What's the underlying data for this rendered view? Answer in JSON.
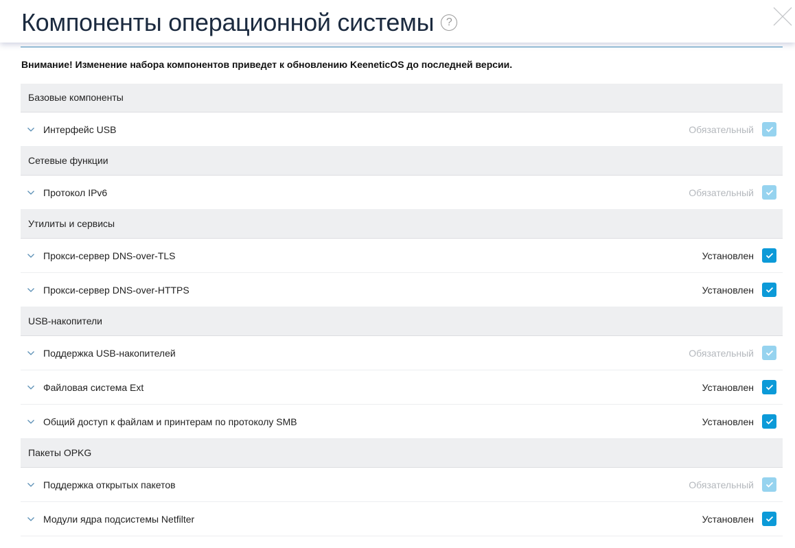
{
  "header": {
    "title": "Компоненты операционной системы",
    "help_icon": "question-circle-icon",
    "close_icon": "close-x-icon"
  },
  "warning": "Внимание! Изменение набора компонентов приведет к обновлению KeeneticOS до последней версии.",
  "colors": {
    "accent": "#0c9ad8",
    "disabled": "#96d3ef",
    "section_bg": "#eeeff1"
  },
  "sections": [
    {
      "title": "Базовые компоненты",
      "items": [
        {
          "label": "Интерфейс USB",
          "status": "Обязательный",
          "required": true,
          "checked": true
        }
      ]
    },
    {
      "title": "Сетевые функции",
      "items": [
        {
          "label": "Протокол IPv6",
          "status": "Обязательный",
          "required": true,
          "checked": true
        }
      ]
    },
    {
      "title": "Утилиты и сервисы",
      "items": [
        {
          "label": "Прокси-сервер DNS-over-TLS",
          "status": "Установлен",
          "required": false,
          "checked": true
        },
        {
          "label": "Прокси-сервер DNS-over-HTTPS",
          "status": "Установлен",
          "required": false,
          "checked": true
        }
      ]
    },
    {
      "title": "USB-накопители",
      "items": [
        {
          "label": "Поддержка USB-накопителей",
          "status": "Обязательный",
          "required": true,
          "checked": true
        },
        {
          "label": "Файловая система Ext",
          "status": "Установлен",
          "required": false,
          "checked": true
        },
        {
          "label": "Общий доступ к файлам и принтерам по протоколу SMB",
          "status": "Установлен",
          "required": false,
          "checked": true
        }
      ]
    },
    {
      "title": "Пакеты OPKG",
      "items": [
        {
          "label": "Поддержка открытых пакетов",
          "status": "Обязательный",
          "required": true,
          "checked": true
        },
        {
          "label": "Модули ядра подсистемы Netfilter",
          "status": "Установлен",
          "required": false,
          "checked": true
        }
      ]
    }
  ]
}
